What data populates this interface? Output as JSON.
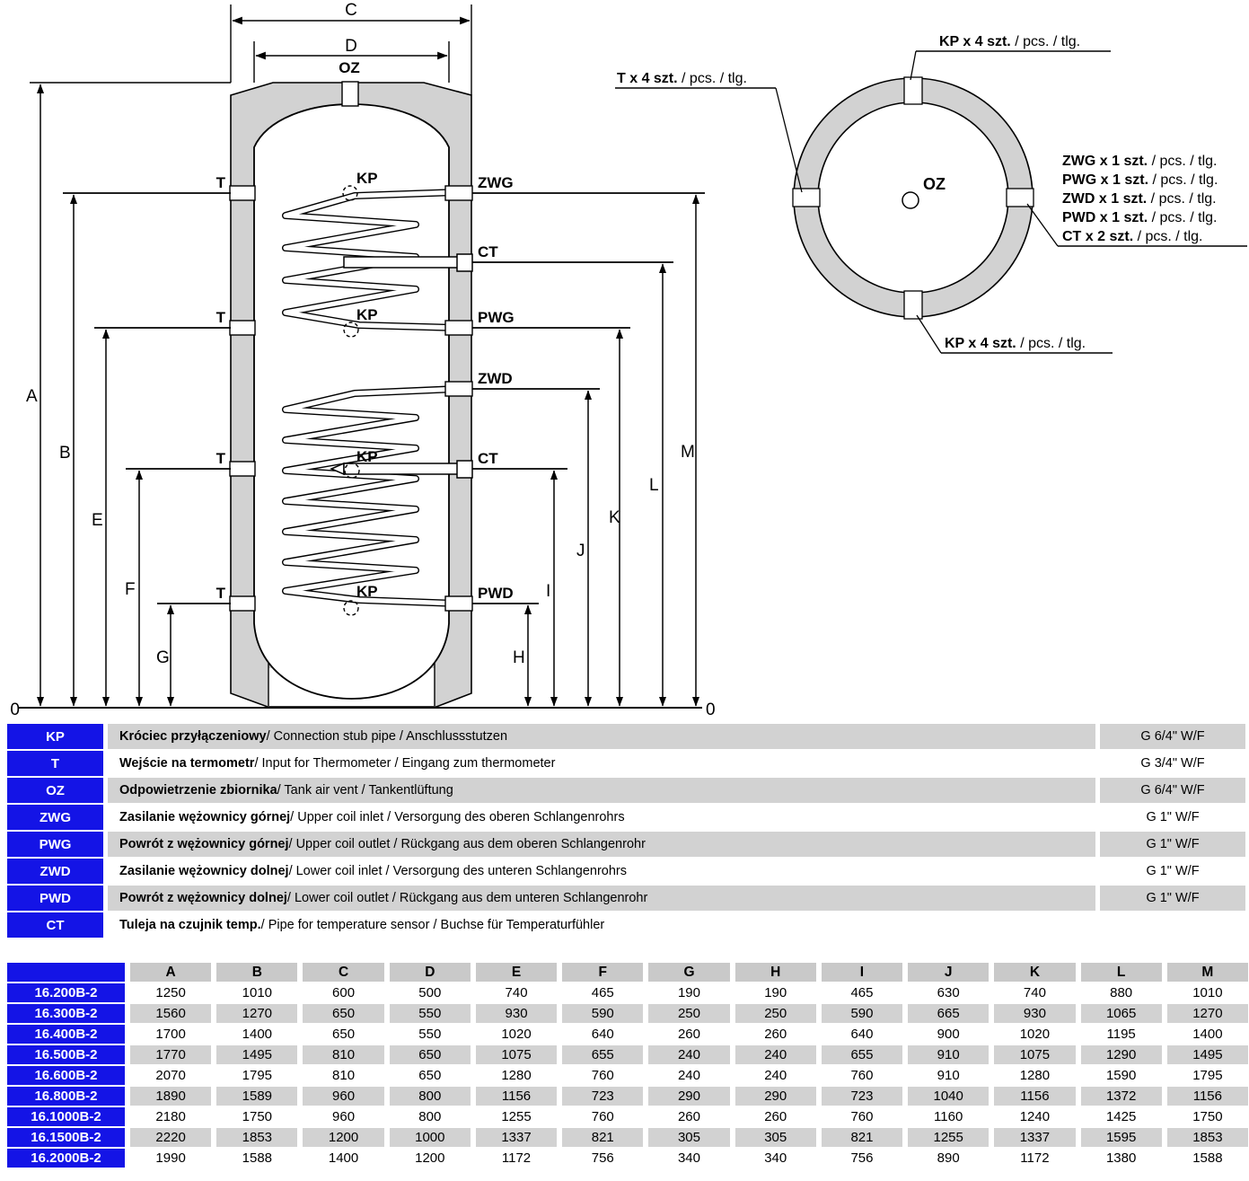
{
  "front_view": {
    "dims": [
      "A",
      "B",
      "C",
      "D",
      "E",
      "F",
      "G",
      "H",
      "I",
      "J",
      "K",
      "L",
      "M"
    ],
    "zero": "0",
    "port_oz": "OZ",
    "port_t": "T",
    "port_kp": "KP",
    "port_zwg": "ZWG",
    "port_ct": "CT",
    "port_pwg": "PWG",
    "port_zwd": "ZWD",
    "port_pwd": "PWD"
  },
  "top_view": {
    "oz": "OZ",
    "callouts": {
      "kp_top": {
        "bold": "KP x 4 szt.",
        "rest": " / pcs. / tlg."
      },
      "t_left": {
        "bold": "T x 4 szt.",
        "rest": " / pcs. / tlg."
      },
      "kp_bottom": {
        "bold": "KP x 4 szt.",
        "rest": " / pcs. / tlg."
      },
      "right": [
        {
          "bold": "ZWG x 1 szt.",
          "rest": " / pcs. / tlg."
        },
        {
          "bold": "PWG x 1 szt.",
          "rest": " / pcs. / tlg."
        },
        {
          "bold": "ZWD x 1 szt.",
          "rest": " / pcs. / tlg."
        },
        {
          "bold": "PWD x 1 szt.",
          "rest": " / pcs. / tlg."
        },
        {
          "bold": "CT x 2 szt.",
          "rest": " / pcs. / tlg."
        }
      ]
    }
  },
  "legend": {
    "rows": [
      {
        "code": "KP",
        "bold": "Króciec przyłączeniowy",
        "rest": " / Connection stub pipe / Anschlussstutzen",
        "size": "G 6/4\" W/F"
      },
      {
        "code": "T",
        "bold": "Wejście na termometr",
        "rest": " / Input for Thermometer / Eingang zum thermometer",
        "size": "G 3/4\" W/F"
      },
      {
        "code": "OZ",
        "bold": "Odpowietrzenie zbiornika",
        "rest": " / Tank air vent / Tankentlüftung",
        "size": "G 6/4\" W/F"
      },
      {
        "code": "ZWG",
        "bold": "Zasilanie wężownicy górnej",
        "rest": " / Upper coil inlet / Versorgung des oberen Schlangenrohrs",
        "size": "G 1\" W/F"
      },
      {
        "code": "PWG",
        "bold": "Powrót z wężownicy górnej",
        "rest": " / Upper coil outlet / Rückgang aus dem oberen Schlangenrohr",
        "size": "G 1\" W/F"
      },
      {
        "code": "ZWD",
        "bold": "Zasilanie wężownicy dolnej",
        "rest": " / Lower coil inlet / Versorgung des unteren Schlangenrohrs",
        "size": "G 1\" W/F"
      },
      {
        "code": "PWD",
        "bold": "Powrót z wężownicy dolnej",
        "rest": " / Lower coil outlet / Rückgang aus dem unteren Schlangenrohr",
        "size": "G 1\" W/F"
      },
      {
        "code": "CT",
        "bold": "Tuleja na czujnik temp.",
        "rest": " / Pipe for temperature sensor / Buchse für Temperaturfühler",
        "size": ""
      }
    ]
  },
  "dimensions_table": {
    "headers": [
      "A",
      "B",
      "C",
      "D",
      "E",
      "F",
      "G",
      "H",
      "I",
      "J",
      "K",
      "L",
      "M"
    ],
    "rows": [
      {
        "model": "16.200B-2",
        "values": [
          1250,
          1010,
          600,
          500,
          740,
          465,
          190,
          190,
          465,
          630,
          740,
          880,
          1010
        ]
      },
      {
        "model": "16.300B-2",
        "values": [
          1560,
          1270,
          650,
          550,
          930,
          590,
          250,
          250,
          590,
          665,
          930,
          1065,
          1270
        ]
      },
      {
        "model": "16.400B-2",
        "values": [
          1700,
          1400,
          650,
          550,
          1020,
          640,
          260,
          260,
          640,
          900,
          1020,
          1195,
          1400
        ]
      },
      {
        "model": "16.500B-2",
        "values": [
          1770,
          1495,
          810,
          650,
          1075,
          655,
          240,
          240,
          655,
          910,
          1075,
          1290,
          1495
        ]
      },
      {
        "model": "16.600B-2",
        "values": [
          2070,
          1795,
          810,
          650,
          1280,
          760,
          240,
          240,
          760,
          910,
          1280,
          1590,
          1795
        ]
      },
      {
        "model": "16.800B-2",
        "values": [
          1890,
          1589,
          960,
          800,
          1156,
          723,
          290,
          290,
          723,
          1040,
          1156,
          1372,
          1156
        ]
      },
      {
        "model": "16.1000B-2",
        "values": [
          2180,
          1750,
          960,
          800,
          1255,
          760,
          260,
          260,
          760,
          1160,
          1240,
          1425,
          1750
        ]
      },
      {
        "model": "16.1500B-2",
        "values": [
          2220,
          1853,
          1200,
          1000,
          1337,
          821,
          305,
          305,
          821,
          1255,
          1337,
          1595,
          1853
        ]
      },
      {
        "model": "16.2000B-2",
        "values": [
          1990,
          1588,
          1400,
          1200,
          1172,
          756,
          340,
          340,
          756,
          890,
          1172,
          1380,
          1588
        ]
      }
    ]
  },
  "colors": {
    "accent_blue": "#1414e6",
    "row_gray": "#d2d2d2",
    "header_gray": "#c9c9c9",
    "insulation_gray": "#d2d2d2"
  }
}
